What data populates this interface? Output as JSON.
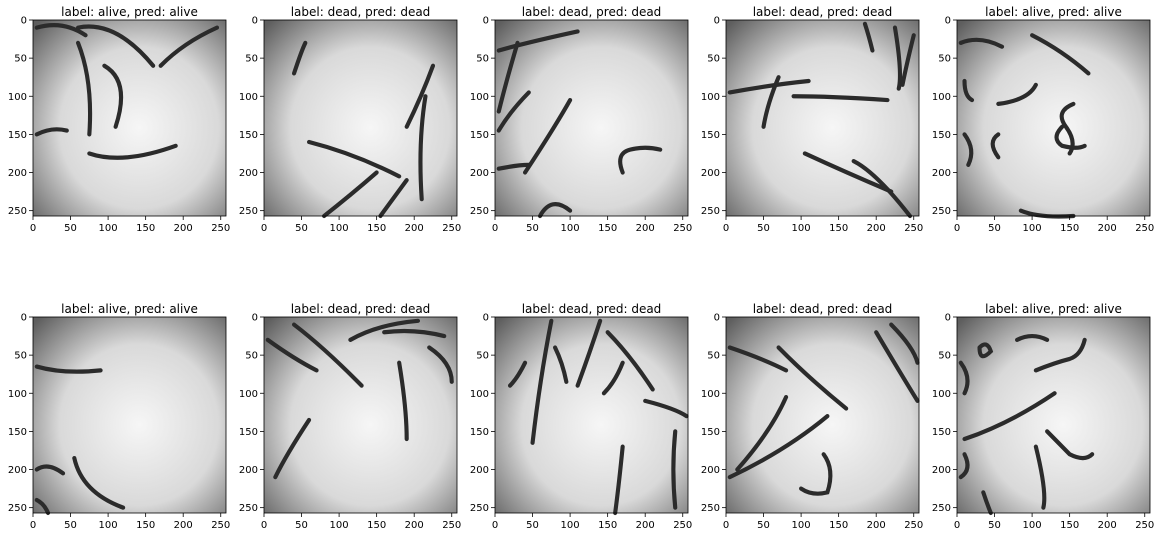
{
  "figure": {
    "axis_ticks": {
      "x": [
        "0",
        "50",
        "100",
        "150",
        "200",
        "250"
      ],
      "y": [
        "0",
        "50",
        "100",
        "150",
        "200",
        "250"
      ]
    },
    "panels": [
      {
        "title": "label: alive, pred: alive",
        "label": "alive",
        "pred": "alive"
      },
      {
        "title": "label: dead, pred: dead",
        "label": "dead",
        "pred": "dead"
      },
      {
        "title": "label: dead, pred: dead",
        "label": "dead",
        "pred": "dead"
      },
      {
        "title": "label: dead, pred: dead",
        "label": "dead",
        "pred": "dead"
      },
      {
        "title": "label: alive, pred: alive",
        "label": "alive",
        "pred": "alive"
      },
      {
        "title": "label: alive, pred: alive",
        "label": "alive",
        "pred": "alive"
      },
      {
        "title": "label: dead, pred: dead",
        "label": "dead",
        "pred": "dead"
      },
      {
        "title": "label: dead, pred: dead",
        "label": "dead",
        "pred": "dead"
      },
      {
        "title": "label: dead, pred: dead",
        "label": "dead",
        "pred": "dead"
      },
      {
        "title": "label: alive, pred: alive",
        "label": "alive",
        "pred": "alive"
      }
    ]
  },
  "colors": {
    "background": "#ffffff",
    "worm": "#2b2b2b",
    "axis": "#000000"
  }
}
